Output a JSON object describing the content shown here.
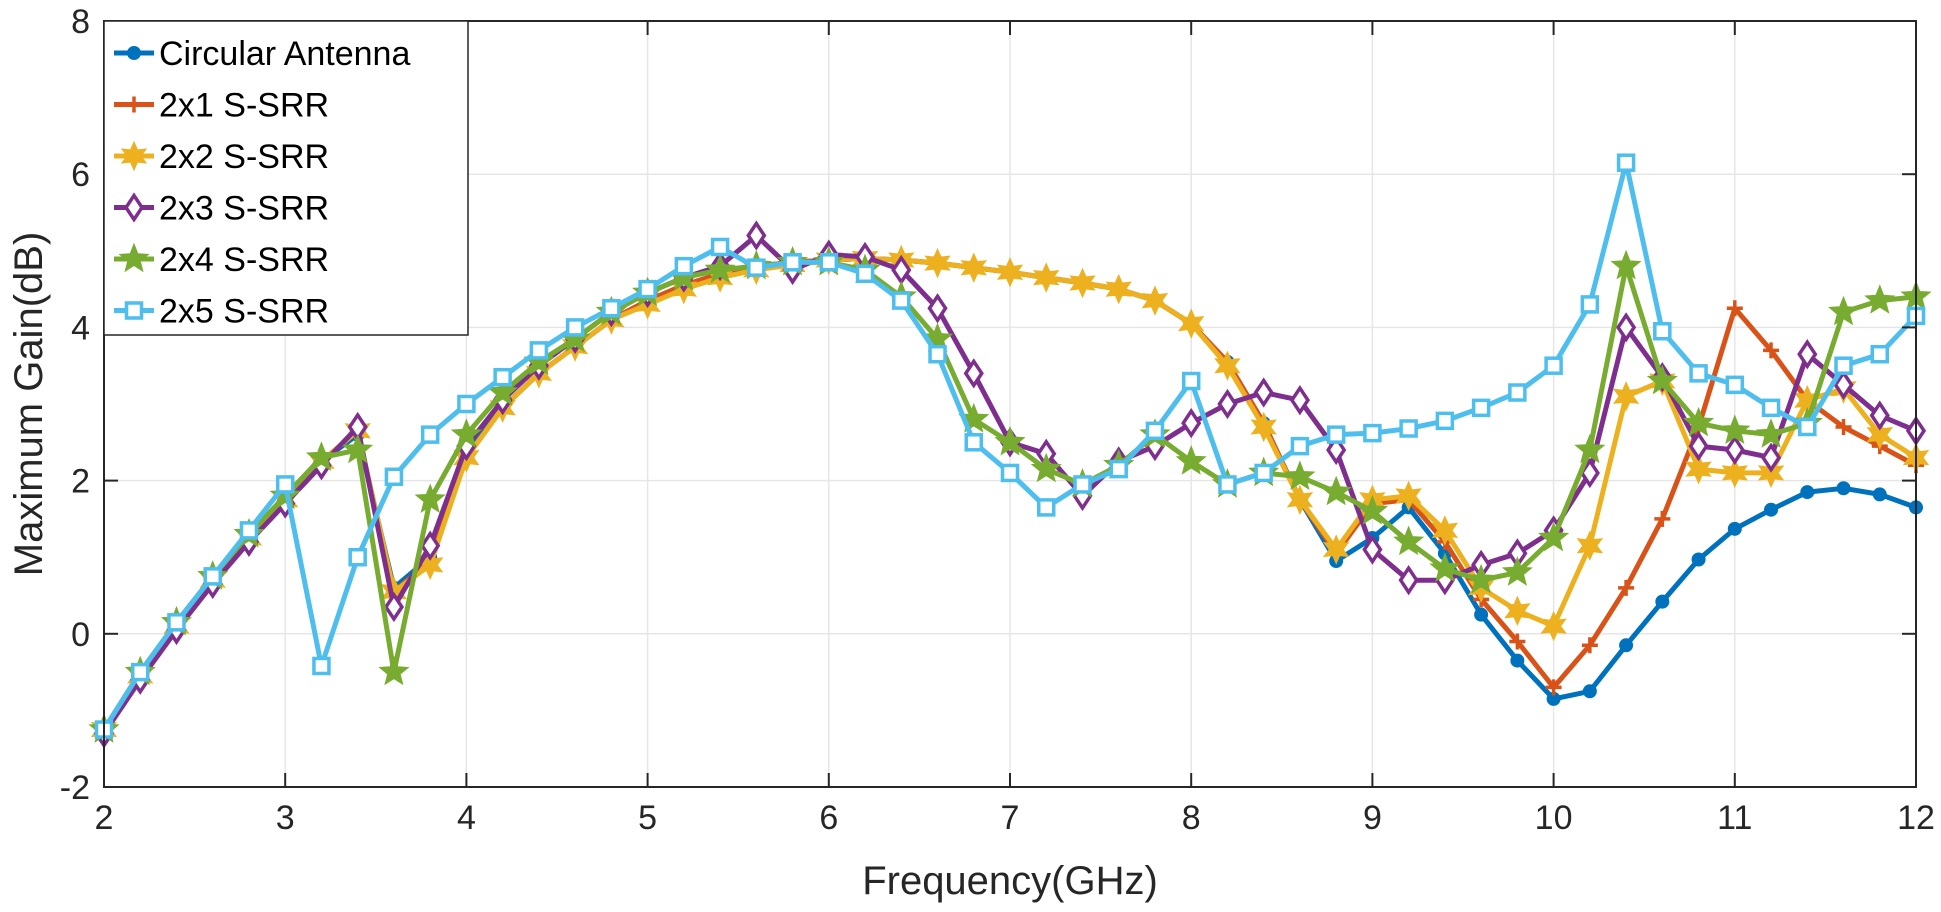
{
  "chart_data": {
    "type": "line",
    "xlabel": "Frequency(GHz)",
    "ylabel": "Maximum Gain(dB)",
    "xlim": [
      2,
      12
    ],
    "ylim": [
      -2,
      8
    ],
    "xticks": [
      2,
      3,
      4,
      5,
      6,
      7,
      8,
      9,
      10,
      11,
      12
    ],
    "yticks": [
      -2,
      0,
      2,
      4,
      6,
      8
    ],
    "grid": true,
    "legend_position": "top-left",
    "x": [
      2,
      2.2,
      2.4,
      2.6,
      2.8,
      3,
      3.2,
      3.4,
      3.6,
      3.8,
      4,
      4.2,
      4.4,
      4.6,
      4.8,
      5,
      5.2,
      5.4,
      5.6,
      5.8,
      6,
      6.2,
      6.4,
      6.6,
      6.8,
      7,
      7.2,
      7.4,
      7.6,
      7.8,
      8,
      8.2,
      8.4,
      8.6,
      8.8,
      9,
      9.2,
      9.4,
      9.6,
      9.8,
      10,
      10.2,
      10.4,
      10.6,
      10.8,
      11,
      11.2,
      11.4,
      11.6,
      11.8,
      12
    ],
    "series": [
      {
        "name": "Circular Antenna",
        "color": "#0072BD",
        "marker": "circle",
        "values": [
          -1.25,
          -0.55,
          0.1,
          0.7,
          1.25,
          1.75,
          2.25,
          2.6,
          0.6,
          1.0,
          2.35,
          2.95,
          3.4,
          3.75,
          4.1,
          4.35,
          4.55,
          4.7,
          4.8,
          4.85,
          4.88,
          4.9,
          4.88,
          4.84,
          4.78,
          4.72,
          4.65,
          4.58,
          4.5,
          4.35,
          4.05,
          3.55,
          2.75,
          1.75,
          0.95,
          1.25,
          1.65,
          1.05,
          0.25,
          -0.35,
          -0.85,
          -0.75,
          -0.15,
          0.42,
          0.97,
          1.37,
          1.62,
          1.85,
          1.9,
          1.82,
          1.65
        ]
      },
      {
        "name": "2x1 S-SRR",
        "color": "#D95319",
        "marker": "plus",
        "values": [
          -1.25,
          -0.55,
          0.1,
          0.7,
          1.25,
          1.75,
          2.25,
          2.65,
          0.55,
          0.95,
          2.3,
          2.95,
          3.4,
          3.75,
          4.1,
          4.35,
          4.55,
          4.7,
          4.8,
          4.85,
          4.88,
          4.9,
          4.88,
          4.84,
          4.78,
          4.72,
          4.65,
          4.58,
          4.5,
          4.35,
          4.05,
          3.55,
          2.75,
          1.75,
          1.05,
          1.7,
          1.75,
          1.2,
          0.45,
          -0.1,
          -0.7,
          -0.15,
          0.6,
          1.5,
          2.7,
          4.25,
          3.7,
          3.05,
          2.7,
          2.45,
          2.2
        ]
      },
      {
        "name": "2x2 S-SRR",
        "color": "#EDB120",
        "marker": "star6",
        "values": [
          -1.25,
          -0.55,
          0.1,
          0.7,
          1.25,
          1.75,
          2.25,
          2.65,
          0.55,
          0.9,
          2.3,
          2.95,
          3.4,
          3.75,
          4.1,
          4.3,
          4.5,
          4.65,
          4.75,
          4.82,
          4.88,
          4.9,
          4.88,
          4.84,
          4.78,
          4.72,
          4.65,
          4.58,
          4.5,
          4.35,
          4.05,
          3.5,
          2.7,
          1.75,
          1.1,
          1.75,
          1.8,
          1.35,
          0.6,
          0.3,
          0.1,
          1.15,
          3.1,
          3.3,
          2.15,
          2.1,
          2.1,
          3.05,
          3.2,
          2.6,
          2.3
        ]
      },
      {
        "name": "2x3 S-SRR",
        "color": "#7E2F8E",
        "marker": "diamond",
        "values": [
          -1.3,
          -0.6,
          0.05,
          0.65,
          1.2,
          1.7,
          2.2,
          2.7,
          0.35,
          1.15,
          2.45,
          3.05,
          3.5,
          3.85,
          4.2,
          4.45,
          4.65,
          4.8,
          5.2,
          4.75,
          4.95,
          4.92,
          4.75,
          4.25,
          3.4,
          2.5,
          2.35,
          1.8,
          2.25,
          2.45,
          2.75,
          3.0,
          3.15,
          3.05,
          2.4,
          1.1,
          0.7,
          0.7,
          0.9,
          1.05,
          1.35,
          2.1,
          4.0,
          3.35,
          2.45,
          2.4,
          2.3,
          3.65,
          3.25,
          2.85,
          2.65
        ]
      },
      {
        "name": "2x4 S-SRR",
        "color": "#77AC30",
        "marker": "star5",
        "values": [
          -1.25,
          -0.5,
          0.15,
          0.75,
          1.3,
          1.8,
          2.3,
          2.4,
          -0.5,
          1.75,
          2.6,
          3.15,
          3.55,
          3.85,
          4.2,
          4.45,
          4.65,
          4.75,
          4.8,
          4.85,
          4.85,
          4.75,
          4.4,
          3.85,
          2.8,
          2.5,
          2.15,
          1.95,
          2.2,
          2.6,
          2.25,
          1.95,
          2.1,
          2.05,
          1.85,
          1.6,
          1.2,
          0.85,
          0.7,
          0.8,
          1.25,
          2.4,
          4.8,
          3.3,
          2.75,
          2.65,
          2.6,
          2.75,
          4.2,
          4.35,
          4.4
        ]
      },
      {
        "name": "2x5 S-SRR",
        "color": "#4DBEEE",
        "marker": "square",
        "values": [
          -1.25,
          -0.5,
          0.15,
          0.75,
          1.35,
          1.95,
          -0.42,
          1.0,
          2.05,
          2.6,
          3.0,
          3.35,
          3.7,
          4.0,
          4.25,
          4.5,
          4.8,
          5.05,
          4.78,
          4.85,
          4.85,
          4.7,
          4.35,
          3.65,
          2.5,
          2.1,
          1.65,
          1.95,
          2.15,
          2.65,
          3.3,
          1.95,
          2.1,
          2.45,
          2.6,
          2.62,
          2.68,
          2.78,
          2.95,
          3.15,
          3.5,
          4.3,
          6.15,
          3.95,
          3.4,
          3.25,
          2.95,
          2.7,
          3.5,
          3.65,
          4.15
        ]
      }
    ]
  }
}
